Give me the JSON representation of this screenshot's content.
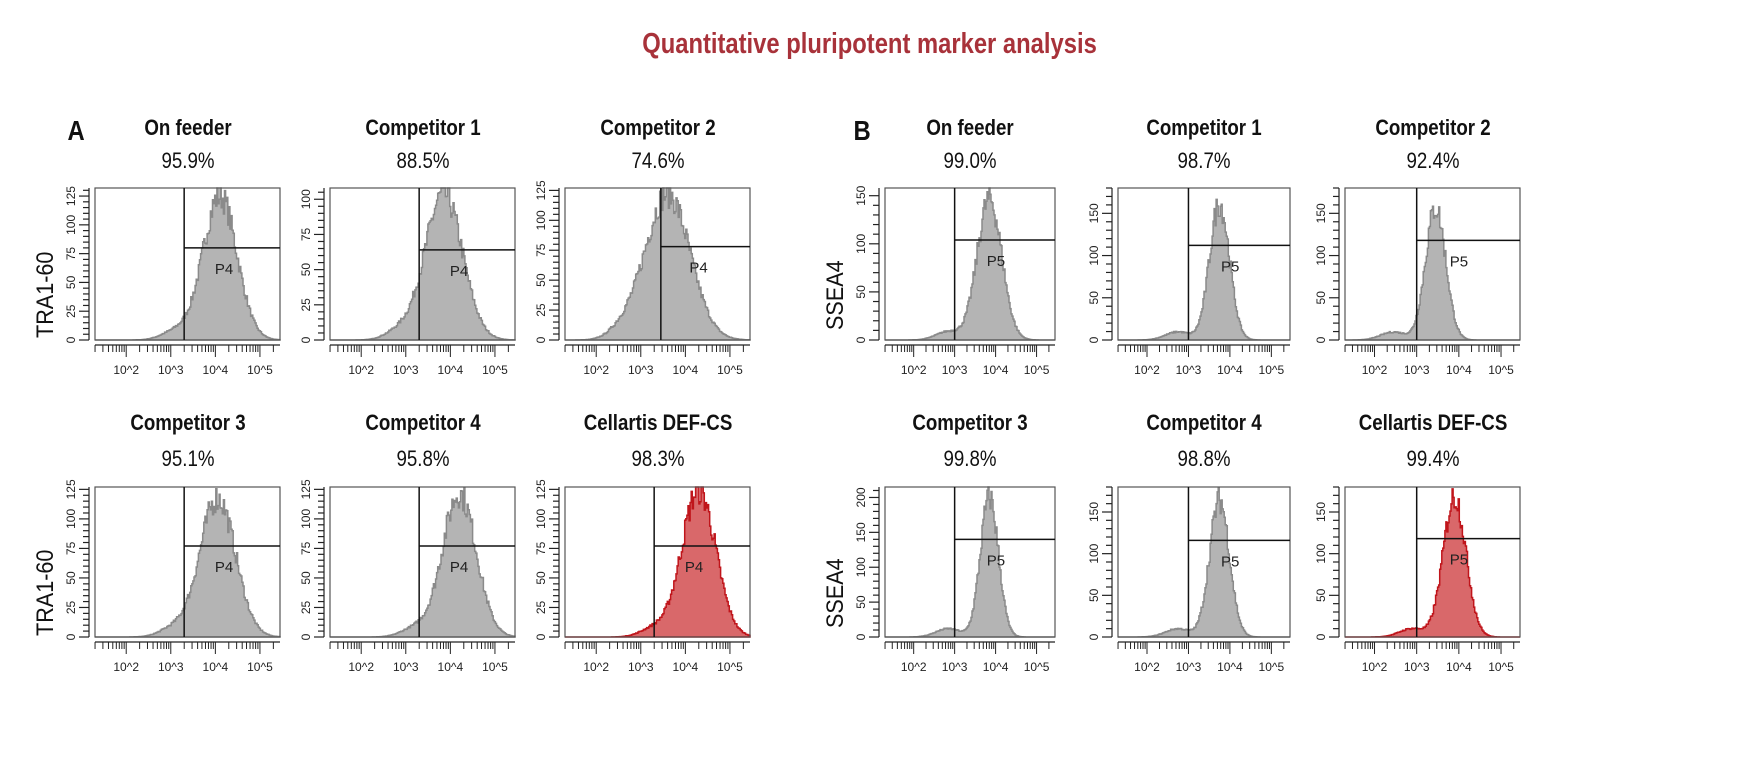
{
  "title": "Quantitative pluripotent marker analysis",
  "colors": {
    "title": "#a8323a",
    "gray_fill": "#b4b4b4",
    "gray_stroke": "#8a8a8a",
    "red_fill": "#d9686a",
    "red_stroke": "#c0151b"
  },
  "chart_data": [
    {
      "section": "A",
      "type": "histogram",
      "ylabel": "TRA1-60",
      "x_scale": "log",
      "x_ticks": [
        "10^2",
        "10^3",
        "10^4",
        "10^5"
      ],
      "gate_label": "P4",
      "panels": [
        {
          "title": "On feeder",
          "percent": "95.9%",
          "y_ticks": [
            0,
            25,
            50,
            75,
            100,
            125
          ],
          "ymax": 132,
          "peak": 128,
          "mean_log": 4.1,
          "sd_log": 0.38,
          "gate_x_log": 3.3,
          "gate_y": 80,
          "color": "gray"
        },
        {
          "title": "Competitor 1",
          "percent": "88.5%",
          "y_ticks": [
            0,
            25,
            50,
            75,
            100
          ],
          "ymax": 108,
          "peak": 106,
          "mean_log": 3.85,
          "sd_log": 0.42,
          "gate_x_log": 3.3,
          "gate_y": 64,
          "color": "gray"
        },
        {
          "title": "Competitor 2",
          "percent": "74.6%",
          "y_ticks": [
            0,
            25,
            50,
            75,
            100,
            125
          ],
          "ymax": 127,
          "peak": 125,
          "mean_log": 3.6,
          "sd_log": 0.5,
          "gate_x_log": 3.45,
          "gate_y": 78,
          "color": "gray"
        },
        {
          "title": "Competitor 3",
          "percent": "95.1%",
          "y_ticks": [
            0,
            25,
            50,
            75,
            100,
            125
          ],
          "ymax": 127,
          "peak": 120,
          "mean_log": 4.05,
          "sd_log": 0.4,
          "gate_x_log": 3.3,
          "gate_y": 77,
          "color": "gray"
        },
        {
          "title": "Competitor 4",
          "percent": "95.8%",
          "y_ticks": [
            0,
            25,
            50,
            75,
            100,
            125
          ],
          "ymax": 127,
          "peak": 124,
          "mean_log": 4.2,
          "sd_log": 0.38,
          "gate_x_log": 3.3,
          "gate_y": 77,
          "color": "gray"
        },
        {
          "title": "Cellartis DEF-CS",
          "percent": "98.3%",
          "y_ticks": [
            0,
            25,
            50,
            75,
            100,
            125
          ],
          "ymax": 127,
          "peak": 127,
          "mean_log": 4.3,
          "sd_log": 0.38,
          "gate_x_log": 3.3,
          "gate_y": 77,
          "color": "red"
        }
      ]
    },
    {
      "section": "B",
      "type": "histogram",
      "ylabel": "SSEA4",
      "x_scale": "log",
      "x_ticks": [
        "10^2",
        "10^3",
        "10^4",
        "10^5"
      ],
      "gate_label": "P5",
      "panels": [
        {
          "title": "On feeder",
          "percent": "99.0%",
          "y_ticks": [
            0,
            50,
            100,
            150
          ],
          "ymax": 158,
          "peak": 150,
          "mean_log": 3.85,
          "sd_log": 0.3,
          "gate_x_log": 3.0,
          "gate_y": 104,
          "color": "gray"
        },
        {
          "title": "Competitor 1",
          "percent": "98.7%",
          "y_ticks": [
            0,
            50,
            100,
            150
          ],
          "ymax": 180,
          "peak": 165,
          "mean_log": 3.75,
          "sd_log": 0.24,
          "gate_x_log": 3.0,
          "gate_y": 112,
          "color": "gray"
        },
        {
          "title": "Competitor 2",
          "percent": "92.4%",
          "y_ticks": [
            0,
            50,
            100,
            150
          ],
          "ymax": 180,
          "peak": 160,
          "mean_log": 3.45,
          "sd_log": 0.24,
          "gate_x_log": 3.0,
          "gate_y": 118,
          "color": "gray"
        },
        {
          "title": "Competitor 3",
          "percent": "99.8%",
          "y_ticks": [
            0,
            50,
            100,
            150,
            200
          ],
          "ymax": 215,
          "peak": 205,
          "mean_log": 3.85,
          "sd_log": 0.22,
          "gate_x_log": 3.0,
          "gate_y": 140,
          "color": "gray"
        },
        {
          "title": "Competitor 4",
          "percent": "98.8%",
          "y_ticks": [
            0,
            50,
            100,
            150
          ],
          "ymax": 180,
          "peak": 168,
          "mean_log": 3.75,
          "sd_log": 0.24,
          "gate_x_log": 3.0,
          "gate_y": 116,
          "color": "gray"
        },
        {
          "title": "Cellartis DEF-CS",
          "percent": "99.4%",
          "y_ticks": [
            0,
            50,
            100,
            150
          ],
          "ymax": 180,
          "peak": 172,
          "mean_log": 3.9,
          "sd_log": 0.27,
          "gate_x_log": 3.0,
          "gate_y": 118,
          "color": "red"
        }
      ]
    }
  ]
}
